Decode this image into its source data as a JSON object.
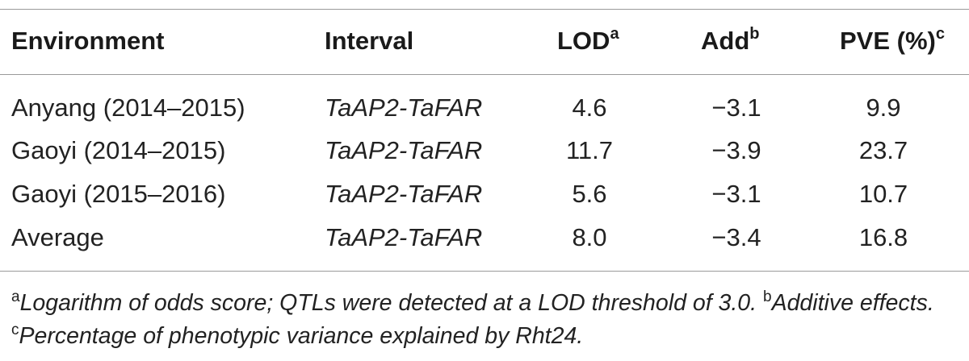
{
  "table": {
    "headers": {
      "environment": "Environment",
      "interval": "Interval",
      "lod": "LOD",
      "lod_sup": "a",
      "add": "Add",
      "add_sup": "b",
      "pve": "PVE (%)",
      "pve_sup": "c"
    },
    "rows": [
      {
        "environment": "Anyang (2014–2015)",
        "interval": "TaAP2-TaFAR",
        "lod": "4.6",
        "add": "−3.1",
        "pve": "9.9"
      },
      {
        "environment": "Gaoyi (2014–2015)",
        "interval": "TaAP2-TaFAR",
        "lod": "11.7",
        "add": "−3.9",
        "pve": "23.7"
      },
      {
        "environment": "Gaoyi (2015–2016)",
        "interval": "TaAP2-TaFAR",
        "lod": "5.6",
        "add": "−3.1",
        "pve": "10.7"
      },
      {
        "environment": "Average",
        "interval": "TaAP2-TaFAR",
        "lod": "8.0",
        "add": "−3.4",
        "pve": "16.8"
      }
    ]
  },
  "footnotes": {
    "a_marker": "a",
    "a_text": "Logarithm of odds score; QTLs were detected at a LOD threshold of 3.0. ",
    "b_marker": "b",
    "b_text": "Additive effects. ",
    "c_marker": "c",
    "c_text": "Percentage of phenotypic variance explained by Rht24."
  }
}
